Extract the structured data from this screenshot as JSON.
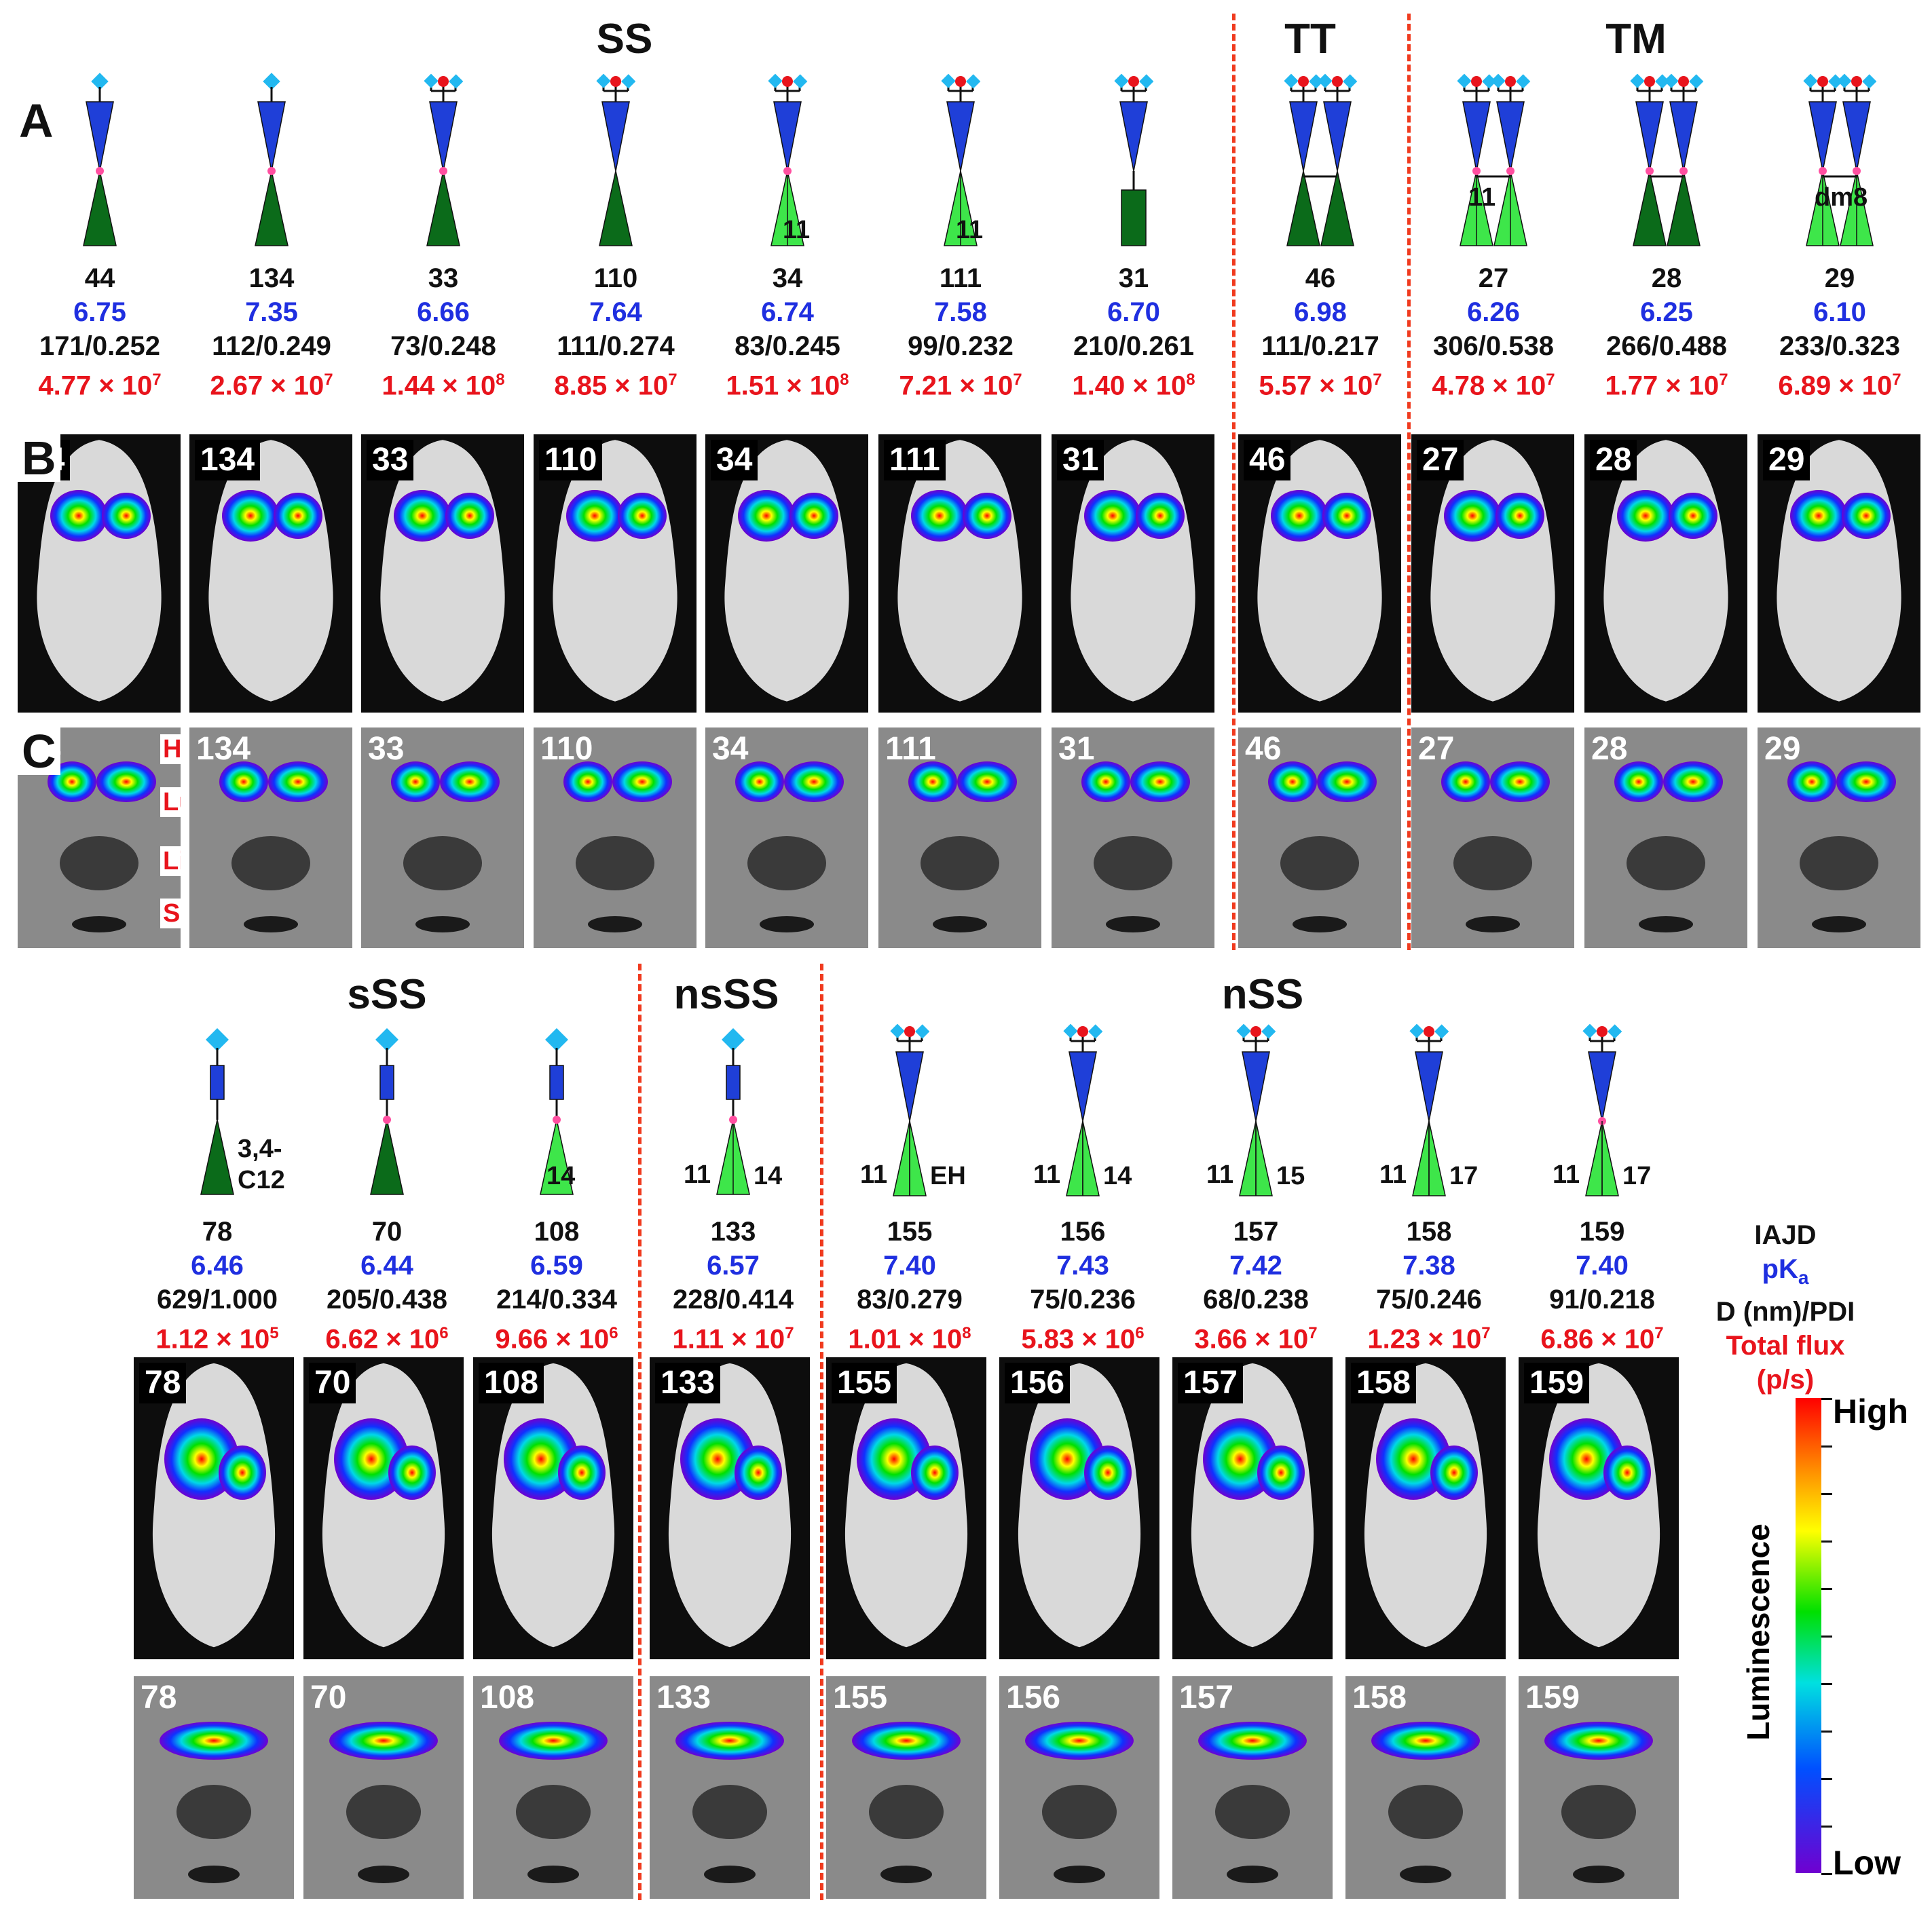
{
  "groups_top": [
    "SS",
    "TT",
    "TM"
  ],
  "groups_bottom": [
    "sSS",
    "nsSS",
    "nSS"
  ],
  "panel_labels": [
    "A",
    "B",
    "C"
  ],
  "organ_labels": [
    "Heart",
    "Lung",
    "Liver",
    "Spleen"
  ],
  "top_columns": [
    {
      "id": "44",
      "pka": "6.75",
      "dpdi": "171/0.252",
      "flux_base": "4.77 × 10",
      "flux_exp": "7",
      "lbl": ""
    },
    {
      "id": "134",
      "pka": "7.35",
      "dpdi": "112/0.249",
      "flux_base": "2.67 × 10",
      "flux_exp": "7",
      "lbl": ""
    },
    {
      "id": "33",
      "pka": "6.66",
      "dpdi": "73/0.248",
      "flux_base": "1.44 × 10",
      "flux_exp": "8",
      "lbl": ""
    },
    {
      "id": "110",
      "pka": "7.64",
      "dpdi": "111/0.274",
      "flux_base": "8.85 × 10",
      "flux_exp": "7",
      "lbl": ""
    },
    {
      "id": "34",
      "pka": "6.74",
      "dpdi": "83/0.245",
      "flux_base": "1.51 × 10",
      "flux_exp": "8",
      "lbl": "11"
    },
    {
      "id": "111",
      "pka": "7.58",
      "dpdi": "99/0.232",
      "flux_base": "7.21 × 10",
      "flux_exp": "7",
      "lbl": "11"
    },
    {
      "id": "31",
      "pka": "6.70",
      "dpdi": "210/0.261",
      "flux_base": "1.40 × 10",
      "flux_exp": "8",
      "lbl": ""
    },
    {
      "id": "46",
      "pka": "6.98",
      "dpdi": "111/0.217",
      "flux_base": "5.57 × 10",
      "flux_exp": "7",
      "lbl": ""
    },
    {
      "id": "27",
      "pka": "6.26",
      "dpdi": "306/0.538",
      "flux_base": "4.78 × 10",
      "flux_exp": "7",
      "lbl": "11"
    },
    {
      "id": "28",
      "pka": "6.25",
      "dpdi": "266/0.488",
      "flux_base": "1.77 × 10",
      "flux_exp": "7",
      "lbl": ""
    },
    {
      "id": "29",
      "pka": "6.10",
      "dpdi": "233/0.323",
      "flux_base": "6.89 × 10",
      "flux_exp": "7",
      "lbl": "dm8"
    }
  ],
  "bottom_columns": [
    {
      "id": "78",
      "pka": "6.46",
      "dpdi": "629/1.000",
      "flux_base": "1.12 × 10",
      "flux_exp": "5",
      "lbl_left": "",
      "lbl_right": "3,4-\nC12"
    },
    {
      "id": "70",
      "pka": "6.44",
      "dpdi": "205/0.438",
      "flux_base": "6.62 × 10",
      "flux_exp": "6",
      "lbl_left": "",
      "lbl_right": ""
    },
    {
      "id": "108",
      "pka": "6.59",
      "dpdi": "214/0.334",
      "flux_base": "9.66 × 10",
      "flux_exp": "6",
      "lbl_left": "",
      "lbl_right": "14"
    },
    {
      "id": "133",
      "pka": "6.57",
      "dpdi": "228/0.414",
      "flux_base": "1.11 × 10",
      "flux_exp": "7",
      "lbl_left": "11",
      "lbl_right": "14"
    },
    {
      "id": "155",
      "pka": "7.40",
      "dpdi": "83/0.279",
      "flux_base": "1.01 × 10",
      "flux_exp": "8",
      "lbl_left": "11",
      "lbl_right": "EH"
    },
    {
      "id": "156",
      "pka": "7.43",
      "dpdi": "75/0.236",
      "flux_base": "5.83 × 10",
      "flux_exp": "6",
      "lbl_left": "11",
      "lbl_right": "14"
    },
    {
      "id": "157",
      "pka": "7.42",
      "dpdi": "68/0.238",
      "flux_base": "3.66 × 10",
      "flux_exp": "7",
      "lbl_left": "11",
      "lbl_right": "15"
    },
    {
      "id": "158",
      "pka": "7.38",
      "dpdi": "75/0.246",
      "flux_base": "1.23 × 10",
      "flux_exp": "7",
      "lbl_left": "11",
      "lbl_right": "17"
    },
    {
      "id": "159",
      "pka": "7.40",
      "dpdi": "91/0.218",
      "flux_base": "6.86 × 10",
      "flux_exp": "7",
      "lbl_left": "11",
      "lbl_right": "17"
    }
  ],
  "legend": {
    "iajd": "IAJD",
    "pka": "pK",
    "pka_sub": "a",
    "dpdi": "D (nm)/PDI",
    "flux": "Total flux",
    "flux_unit": "(p/s)",
    "high": "High",
    "low": "Low",
    "axis": "Luminescence"
  },
  "colors": {
    "pka": "#1f2fe0",
    "flux": "#e8141c",
    "separator": "#f03a1e",
    "dendron_blue": "#1f3fd8",
    "dendron_green_dark": "#0b6b1a",
    "dendron_green_light": "#3ee64a",
    "head_blue": "#22b8f0",
    "head_red": "#e8141c",
    "joint_pink": "#ff4fa0"
  }
}
